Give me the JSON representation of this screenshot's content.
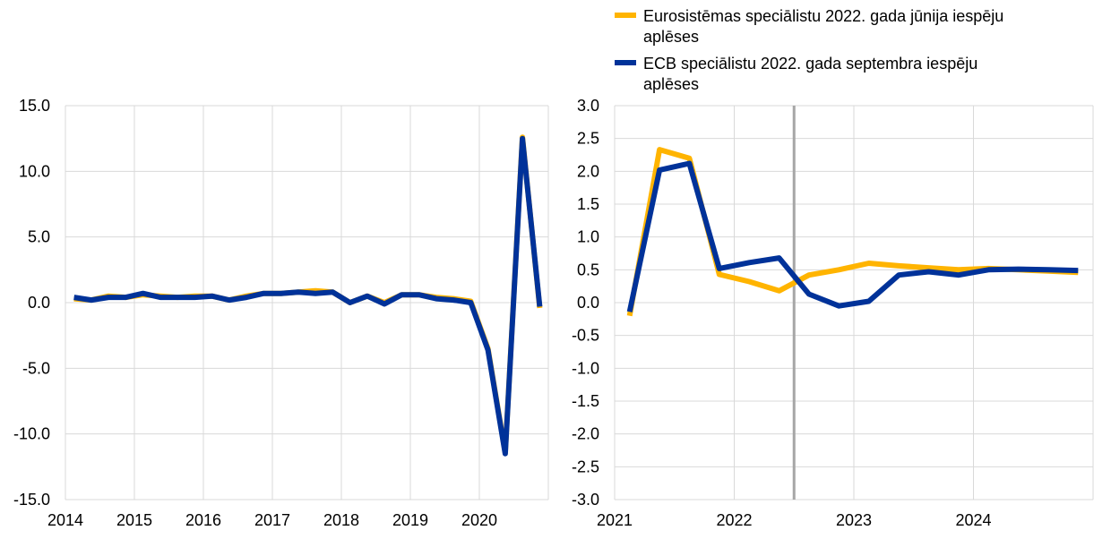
{
  "colors": {
    "june": "#ffb400",
    "september": "#003299",
    "grid": "#d9d9d9",
    "marker_line": "#a6a6a6"
  },
  "legend": {
    "june": [
      "Eurosistēmas speciālistu 2022. gada jūnija iespēju",
      "aplēses"
    ],
    "september": [
      "ECB speciālistu 2022. gada septembra iespēju",
      "aplēses"
    ]
  },
  "chart_data": [
    {
      "type": "line",
      "title": "",
      "x_unit": "quarter",
      "x_tick_labels": [
        "2014",
        "2015",
        "2016",
        "2017",
        "2018",
        "2019",
        "2020"
      ],
      "ylim": [
        -15,
        15
      ],
      "y_ticks": [
        15,
        10,
        5,
        0,
        -5,
        -10,
        -15
      ],
      "y_tick_labels": [
        "15.0",
        "10.0",
        "5.0",
        "0.0",
        "-5.0",
        "-10.0",
        "-15.0"
      ],
      "grid": true,
      "x": [
        "2014-Q1",
        "2014-Q2",
        "2014-Q3",
        "2014-Q4",
        "2015-Q1",
        "2015-Q2",
        "2015-Q3",
        "2015-Q4",
        "2016-Q1",
        "2016-Q2",
        "2016-Q3",
        "2016-Q4",
        "2017-Q1",
        "2017-Q2",
        "2017-Q3",
        "2017-Q4",
        "2018-Q1",
        "2018-Q2",
        "2018-Q3",
        "2018-Q4",
        "2019-Q1",
        "2019-Q2",
        "2019-Q3",
        "2019-Q4",
        "2020-Q1",
        "2020-Q2",
        "2020-Q3",
        "2020-Q4"
      ],
      "series": [
        {
          "key": "june",
          "values": [
            0.3,
            0.2,
            0.5,
            0.4,
            0.6,
            0.5,
            0.4,
            0.5,
            0.5,
            0.2,
            0.5,
            0.7,
            0.7,
            0.8,
            0.9,
            0.8,
            0.0,
            0.5,
            0.0,
            0.6,
            0.6,
            0.4,
            0.3,
            0.1,
            -3.5,
            -11.4,
            12.6,
            -0.4
          ]
        },
        {
          "key": "september",
          "values": [
            0.4,
            0.2,
            0.4,
            0.4,
            0.7,
            0.4,
            0.4,
            0.4,
            0.5,
            0.2,
            0.4,
            0.7,
            0.7,
            0.8,
            0.7,
            0.8,
            0.0,
            0.5,
            -0.1,
            0.6,
            0.6,
            0.3,
            0.2,
            0.0,
            -3.6,
            -11.5,
            12.5,
            -0.3
          ]
        }
      ]
    },
    {
      "type": "line",
      "title": "",
      "x_unit": "quarter",
      "x_tick_labels": [
        "2021",
        "2022",
        "2023",
        "2024"
      ],
      "ylim": [
        -3,
        3
      ],
      "y_ticks": [
        3,
        2.5,
        2,
        1.5,
        1,
        0.5,
        0,
        -0.5,
        -1,
        -1.5,
        -2,
        -2.5,
        -3
      ],
      "y_tick_labels": [
        "3.0",
        "2.5",
        "2.0",
        "1.5",
        "1.0",
        "0.5",
        "0.0",
        "-0.5",
        "-1.0",
        "-1.5",
        "-2.0",
        "-2.5",
        "-3.0"
      ],
      "grid": true,
      "vertical_marker_x": "2022-Q3",
      "x": [
        "2021-Q1",
        "2021-Q2",
        "2021-Q3",
        "2021-Q4",
        "2022-Q1",
        "2022-Q2",
        "2022-Q3",
        "2022-Q4",
        "2023-Q1",
        "2023-Q2",
        "2023-Q3",
        "2023-Q4",
        "2024-Q1",
        "2024-Q2",
        "2024-Q3",
        "2024-Q4"
      ],
      "series": [
        {
          "key": "june",
          "values": [
            -0.2,
            2.33,
            2.2,
            0.43,
            0.32,
            0.18,
            0.42,
            0.5,
            0.6,
            0.56,
            0.53,
            0.5,
            0.52,
            0.5,
            0.48,
            0.46
          ]
        },
        {
          "key": "september",
          "values": [
            -0.14,
            2.02,
            2.12,
            0.52,
            0.61,
            0.68,
            0.13,
            -0.05,
            0.02,
            0.42,
            0.47,
            0.42,
            0.5,
            0.51,
            0.5,
            0.49
          ]
        }
      ]
    }
  ]
}
